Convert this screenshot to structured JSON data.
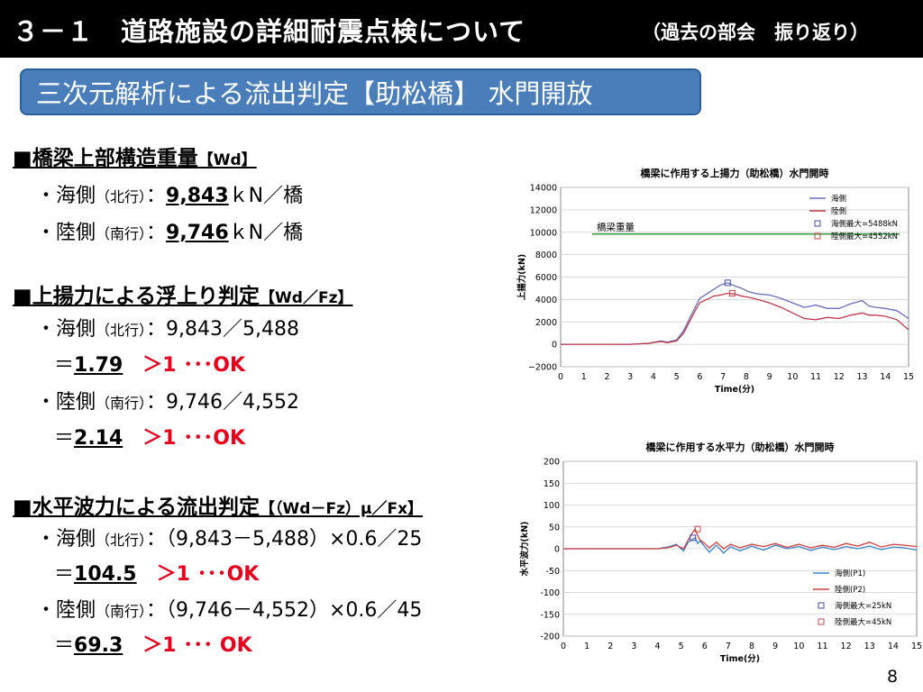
{
  "header": {
    "title": "３－１　道路施設の詳細耐震点検について",
    "subtitle_right": "（過去の部会　振り返り）"
  },
  "section_title": "三次元解析による流出判定【助松橋】 水門開放",
  "s1": {
    "heading": "■橋梁上部構造重量",
    "heading_suffix": "【Wd】",
    "sea_prefix": "・海側",
    "sea_dir": "（北行）",
    "sea_colon": "：",
    "sea_value": "9,843",
    "sea_unit": "ｋN／橋",
    "land_prefix": "・陸側",
    "land_dir": "（南行）",
    "land_colon": "：",
    "land_value": "9,746",
    "land_unit": "ｋN／橋"
  },
  "s2": {
    "heading": "■上揚力による浮上り判定",
    "heading_suffix": "【Wd／Fz】",
    "sea_prefix": "・海側",
    "sea_dir": "（北行）",
    "sea_expr": "：9,843／5,488",
    "sea_eq": "＝",
    "sea_result": "1.79",
    "sea_ok": "＞1 ･･･OK",
    "land_prefix": "・陸側",
    "land_dir": "（南行）",
    "land_expr": "：9,746／4,552",
    "land_eq": "＝",
    "land_result": "2.14",
    "land_ok": "＞1 ･･･OK"
  },
  "s3": {
    "heading": "■水平波力による流出判定",
    "heading_suffix": "【（Wd－Fz）μ／Fx】",
    "sea_prefix": "・海側",
    "sea_dir": "（北行）",
    "sea_expr": "：（9,843－5,488）×0.6／25",
    "sea_eq": "＝",
    "sea_result": "104.5",
    "sea_ok": "＞1 ･･･OK",
    "land_prefix": "・陸側",
    "land_dir": "（南行）",
    "land_expr": "：（9,746－4,552）×0.6／45",
    "land_eq": "＝",
    "land_result": "69.3",
    "land_ok": "＞1 ･･･ OK"
  },
  "page_number": "8",
  "chart_data": [
    {
      "type": "line",
      "title": "橋梁に作用する上揚力（助松橋）水門開時",
      "xlabel": "Time(分)",
      "ylabel": "上揚力(kN)",
      "xlim": [
        0,
        15
      ],
      "ylim": [
        -2000,
        14000
      ],
      "xticks": [
        "0",
        "1",
        "2",
        "3",
        "4",
        "5",
        "6",
        "7",
        "8",
        "9",
        "10",
        "11",
        "12",
        "13",
        "14",
        "15"
      ],
      "yticks": [
        "14000",
        "12000",
        "10000",
        "8000",
        "6000",
        "4000",
        "2000",
        "0",
        "−2000"
      ],
      "reference_line": {
        "label": "橋梁重量",
        "value": 9843,
        "color": "#33a04a"
      },
      "series": [
        {
          "name": "海側",
          "color": "#6a6fc0",
          "x": [
            0,
            1,
            2,
            3,
            3.8,
            4.3,
            4.6,
            5,
            5.3,
            5.6,
            5.8,
            6,
            6.3,
            6.6,
            6.9,
            7.2,
            7.5,
            7.8,
            8.1,
            8.5,
            9,
            9.5,
            10,
            10.5,
            11,
            11.5,
            12,
            12.5,
            13,
            13.3,
            13.6,
            14,
            14.5,
            15
          ],
          "y": [
            0,
            0,
            0,
            0,
            100,
            300,
            200,
            400,
            1200,
            2500,
            3300,
            4100,
            4500,
            4900,
            5300,
            5488,
            5200,
            5000,
            4700,
            4500,
            4400,
            4100,
            3700,
            3300,
            3500,
            3200,
            3200,
            3600,
            3900,
            3400,
            3300,
            3200,
            3000,
            2300
          ]
        },
        {
          "name": "陸側",
          "color": "#c0394a",
          "x": [
            0,
            1,
            2,
            3,
            3.8,
            4.3,
            4.6,
            5,
            5.3,
            5.6,
            5.8,
            6,
            6.3,
            6.6,
            6.9,
            7.2,
            7.5,
            7.8,
            8.1,
            8.5,
            9,
            9.5,
            10,
            10.5,
            11,
            11.5,
            12,
            12.5,
            13,
            13.3,
            13.6,
            14,
            14.5,
            15
          ],
          "y": [
            0,
            0,
            0,
            0,
            80,
            250,
            150,
            300,
            1000,
            2200,
            3000,
            3700,
            4000,
            4300,
            4400,
            4552,
            4500,
            4300,
            4200,
            4000,
            3700,
            3300,
            2800,
            2300,
            2200,
            2400,
            2300,
            2600,
            2800,
            2600,
            2600,
            2500,
            2200,
            1300
          ]
        }
      ],
      "markers": [
        {
          "name": "海側最大=5488kN",
          "x": 7.2,
          "y": 5488,
          "color": "#3b4bb5"
        },
        {
          "name": "陸側最大=4552kN",
          "x": 7.4,
          "y": 4552,
          "color": "#d24a4a"
        }
      ],
      "legend": "top-right"
    },
    {
      "type": "line",
      "title": "橋梁に作用する水平力（助松橋）水門開時",
      "xlabel": "Time(分)",
      "ylabel": "水平波力(kN)",
      "xlim": [
        0,
        15
      ],
      "ylim": [
        -200,
        200
      ],
      "xticks": [
        "0",
        "1",
        "2",
        "3",
        "4",
        "5",
        "6",
        "7",
        "8",
        "9",
        "10",
        "11",
        "12",
        "13",
        "14",
        "15"
      ],
      "yticks": [
        "200",
        "150",
        "100",
        "50",
        "0",
        "-50",
        "-100",
        "-150",
        "-200"
      ],
      "series": [
        {
          "name": "海側(P1)",
          "color": "#3a86c8",
          "x": [
            0,
            1,
            2,
            3,
            4,
            4.5,
            4.8,
            5.1,
            5.3,
            5.5,
            5.6,
            5.7,
            5.8,
            6,
            6.2,
            6.5,
            6.8,
            7.1,
            7.5,
            8,
            8.5,
            9,
            9.5,
            10,
            10.5,
            11,
            11.5,
            12,
            12.5,
            13,
            13.5,
            14,
            14.5,
            15
          ],
          "y": [
            0,
            0,
            0,
            0,
            0,
            5,
            10,
            -5,
            15,
            22,
            25,
            12,
            18,
            5,
            -8,
            8,
            -10,
            5,
            -5,
            6,
            -3,
            8,
            0,
            5,
            -4,
            4,
            -2,
            5,
            0,
            6,
            -2,
            4,
            2,
            -3
          ]
        },
        {
          "name": "陸側(P2)",
          "color": "#d23c3c",
          "x": [
            0,
            1,
            2,
            3,
            4,
            4.5,
            4.8,
            5.1,
            5.3,
            5.5,
            5.6,
            5.7,
            5.8,
            6,
            6.2,
            6.5,
            6.8,
            7.1,
            7.5,
            8,
            8.5,
            9,
            9.5,
            10,
            10.5,
            11,
            11.5,
            12,
            12.5,
            13,
            13.5,
            14,
            14.5,
            15
          ],
          "y": [
            0,
            0,
            0,
            0,
            0,
            3,
            8,
            0,
            20,
            38,
            45,
            30,
            20,
            12,
            2,
            15,
            0,
            10,
            2,
            10,
            5,
            12,
            3,
            10,
            2,
            8,
            3,
            12,
            6,
            15,
            4,
            10,
            8,
            5
          ]
        }
      ],
      "markers": [
        {
          "name": "海側最大=25kN",
          "x": 5.5,
          "y": 25,
          "color": "#3b4bb5"
        },
        {
          "name": "陸側最大=45kN",
          "x": 5.7,
          "y": 45,
          "color": "#d24a4a"
        }
      ],
      "legend": "bottom-right"
    }
  ]
}
